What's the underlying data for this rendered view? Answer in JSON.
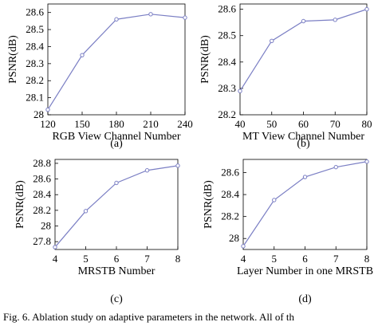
{
  "chart_data": [
    {
      "type": "line",
      "panel_label": "(a)",
      "xlabel": "RGB View Channel Number",
      "ylabel": "PSNR(dB)",
      "x": [
        120,
        150,
        180,
        210,
        240
      ],
      "xticks": [
        "120",
        "150",
        "180",
        "210",
        "240"
      ],
      "values": [
        28.03,
        28.35,
        28.56,
        28.59,
        28.57
      ],
      "yticks": [
        "28",
        "28.1",
        "28.2",
        "28.3",
        "28.4",
        "28.5",
        "28.6"
      ],
      "ylim": [
        28.0,
        28.65
      ],
      "xlim": [
        120,
        240
      ],
      "color": "#7b7fc4"
    },
    {
      "type": "line",
      "panel_label": "(b)",
      "xlabel": "MT View Channel Number",
      "ylabel": "PSNR(dB)",
      "x": [
        40,
        50,
        60,
        70,
        80
      ],
      "xticks": [
        "40",
        "50",
        "60",
        "70",
        "80"
      ],
      "values": [
        28.29,
        28.48,
        28.555,
        28.56,
        28.6
      ],
      "yticks": [
        "28.2",
        "28.3",
        "28.4",
        "28.5",
        "28.6"
      ],
      "ylim": [
        28.2,
        28.62
      ],
      "xlim": [
        40,
        80
      ],
      "color": "#7b7fc4"
    },
    {
      "type": "line",
      "panel_label": "(c)",
      "xlabel": "MRSTB Number",
      "ylabel": "PSNR(dB)",
      "x": [
        4,
        5,
        6,
        7,
        8
      ],
      "xticks": [
        "4",
        "5",
        "6",
        "7",
        "8"
      ],
      "values": [
        27.73,
        28.19,
        28.55,
        28.71,
        28.77
      ],
      "yticks": [
        "27.8",
        "28",
        "28.2",
        "28.4",
        "28.6",
        "28.8"
      ],
      "ylim": [
        27.7,
        28.85
      ],
      "xlim": [
        4,
        8
      ],
      "color": "#7b7fc4"
    },
    {
      "type": "line",
      "panel_label": "(d)",
      "xlabel": "Layer Number in one MRSTB",
      "ylabel": "PSNR(dB)",
      "x": [
        4,
        5,
        6,
        7,
        8
      ],
      "xticks": [
        "4",
        "5",
        "6",
        "7",
        "8"
      ],
      "values": [
        27.93,
        28.35,
        28.56,
        28.65,
        28.7
      ],
      "yticks": [
        "28",
        "28.2",
        "28.4",
        "28.6"
      ],
      "ylim": [
        27.9,
        28.72
      ],
      "xlim": [
        4,
        8
      ],
      "color": "#7b7fc4"
    }
  ],
  "caption": "Fig. 6.   Ablation study on adaptive parameters in the network. All of th"
}
